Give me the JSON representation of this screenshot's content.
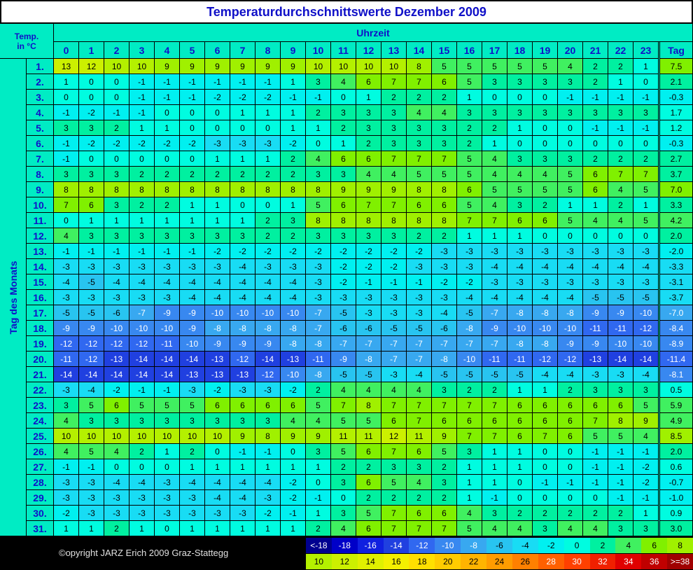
{
  "title": "Temperaturdurchschnittswerte Dezember 2009",
  "corner": [
    "Temp.",
    "in °C"
  ],
  "hour_header": "Uhrzeit",
  "hours": [
    0,
    1,
    2,
    3,
    4,
    5,
    6,
    7,
    8,
    9,
    10,
    11,
    12,
    13,
    14,
    15,
    16,
    17,
    18,
    19,
    20,
    21,
    22,
    23
  ],
  "day_header": "Tag",
  "row_axis_label": "Tag des Monats",
  "rows": [
    {
      "label": "1.",
      "values": [
        13,
        12,
        10,
        10,
        9,
        9,
        9,
        9,
        9,
        9,
        10,
        10,
        10,
        10,
        8,
        5,
        5,
        5,
        5,
        5,
        4,
        2,
        2,
        1
      ],
      "tag": "7.5"
    },
    {
      "label": "2.",
      "values": [
        1,
        0,
        0,
        -1,
        -1,
        -1,
        -1,
        -1,
        -1,
        1,
        3,
        4,
        6,
        7,
        7,
        6,
        5,
        3,
        3,
        3,
        3,
        2,
        1,
        0
      ],
      "tag": "2.1"
    },
    {
      "label": "3.",
      "values": [
        0,
        0,
        0,
        -1,
        -1,
        -1,
        -2,
        -2,
        -2,
        -1,
        -1,
        0,
        1,
        2,
        2,
        2,
        1,
        0,
        0,
        0,
        -1,
        -1,
        -1,
        -1
      ],
      "tag": "-0.3"
    },
    {
      "label": "4.",
      "values": [
        -1,
        -2,
        -1,
        -1,
        0,
        0,
        0,
        1,
        1,
        1,
        2,
        3,
        3,
        3,
        4,
        4,
        3,
        3,
        3,
        3,
        3,
        3,
        3,
        3
      ],
      "tag": "1.7"
    },
    {
      "label": "5.",
      "values": [
        3,
        3,
        2,
        1,
        1,
        0,
        0,
        0,
        0,
        1,
        1,
        2,
        3,
        3,
        3,
        3,
        2,
        2,
        1,
        0,
        0,
        -1,
        -1,
        -1
      ],
      "tag": "1.2"
    },
    {
      "label": "6.",
      "values": [
        -1,
        -2,
        -2,
        -2,
        -2,
        -2,
        -3,
        -3,
        -3,
        -2,
        0,
        1,
        2,
        3,
        3,
        3,
        2,
        1,
        0,
        0,
        0,
        0,
        0,
        0
      ],
      "tag": "-0.3"
    },
    {
      "label": "7.",
      "values": [
        -1,
        0,
        0,
        0,
        0,
        0,
        1,
        1,
        1,
        2,
        4,
        6,
        6,
        7,
        7,
        7,
        5,
        4,
        3,
        3,
        3,
        2,
        2,
        2
      ],
      "tag": "2.7"
    },
    {
      "label": "8.",
      "values": [
        3,
        3,
        3,
        2,
        2,
        2,
        2,
        2,
        2,
        2,
        3,
        3,
        4,
        4,
        5,
        5,
        5,
        4,
        4,
        4,
        5,
        6,
        7,
        7
      ],
      "tag": "3.7"
    },
    {
      "label": "9.",
      "values": [
        8,
        8,
        8,
        8,
        8,
        8,
        8,
        8,
        8,
        8,
        8,
        9,
        9,
        9,
        8,
        8,
        6,
        5,
        5,
        5,
        5,
        6,
        4,
        5
      ],
      "tag": "7.0"
    },
    {
      "label": "10.",
      "values": [
        7,
        6,
        3,
        2,
        2,
        1,
        1,
        0,
        0,
        1,
        5,
        6,
        7,
        7,
        6,
        6,
        5,
        4,
        3,
        2,
        1,
        1,
        2,
        1
      ],
      "tag": "3.3"
    },
    {
      "label": "11.",
      "values": [
        0,
        1,
        1,
        1,
        1,
        1,
        1,
        1,
        2,
        3,
        8,
        8,
        8,
        8,
        8,
        8,
        7,
        7,
        6,
        6,
        5,
        4,
        4,
        5
      ],
      "tag": "4.2"
    },
    {
      "label": "12.",
      "values": [
        4,
        3,
        3,
        3,
        3,
        3,
        3,
        3,
        2,
        2,
        3,
        3,
        3,
        3,
        2,
        2,
        1,
        1,
        1,
        0,
        0,
        0,
        0,
        0
      ],
      "tag": "2.0"
    },
    {
      "label": "13.",
      "values": [
        -1,
        -1,
        -1,
        -1,
        -1,
        -1,
        -2,
        -2,
        -2,
        -2,
        -2,
        -2,
        -2,
        -2,
        -2,
        -3,
        -3,
        -3,
        -3,
        -3,
        -3,
        -3,
        -3,
        -3
      ],
      "tag": "-2.0"
    },
    {
      "label": "14.",
      "values": [
        -3,
        -3,
        -3,
        -3,
        -3,
        -3,
        -3,
        -4,
        -3,
        -3,
        -3,
        -2,
        -2,
        -2,
        -3,
        -3,
        -3,
        -4,
        -4,
        -4,
        -4,
        -4,
        -4,
        -4
      ],
      "tag": "-3.3"
    },
    {
      "label": "15.",
      "values": [
        -4,
        -5,
        -4,
        -4,
        -4,
        -4,
        -4,
        -4,
        -4,
        -4,
        -3,
        -2,
        -1,
        -1,
        -1,
        -2,
        -2,
        -3,
        -3,
        -3,
        -3,
        -3,
        -3,
        -3
      ],
      "tag": "-3.1"
    },
    {
      "label": "16.",
      "values": [
        -3,
        -3,
        -3,
        -3,
        -3,
        -4,
        -4,
        -4,
        -4,
        -4,
        -3,
        -3,
        -3,
        -3,
        -3,
        -3,
        -4,
        -4,
        -4,
        -4,
        -4,
        -5,
        -5,
        -5
      ],
      "tag": "-3.7"
    },
    {
      "label": "17.",
      "values": [
        -5,
        -5,
        -6,
        -7,
        -9,
        -9,
        -10,
        -10,
        -10,
        -10,
        -7,
        -5,
        -3,
        -3,
        -3,
        -4,
        -5,
        -7,
        -8,
        -8,
        -8,
        -9,
        -9,
        -10
      ],
      "tag": "-7.0"
    },
    {
      "label": "18.",
      "values": [
        -9,
        -9,
        -10,
        -10,
        -10,
        -9,
        -8,
        -8,
        -8,
        -8,
        -7,
        -6,
        -6,
        -5,
        -5,
        -6,
        -8,
        -9,
        -10,
        -10,
        -10,
        -11,
        -11,
        -12
      ],
      "tag": "-8.4"
    },
    {
      "label": "19.",
      "values": [
        -12,
        -12,
        -12,
        -12,
        -11,
        -10,
        -9,
        -9,
        -9,
        -8,
        -8,
        -7,
        -7,
        -7,
        -7,
        -7,
        -7,
        -7,
        -8,
        -8,
        -9,
        -9,
        -10,
        -10
      ],
      "tag": "-8.9"
    },
    {
      "label": "20.",
      "values": [
        -11,
        -12,
        -13,
        -14,
        -14,
        -14,
        -13,
        -12,
        -14,
        -13,
        -11,
        -9,
        -8,
        -7,
        -7,
        -8,
        -10,
        -11,
        -11,
        -12,
        -12,
        -13,
        -14,
        -14
      ],
      "tag": "-11.4"
    },
    {
      "label": "21.",
      "values": [
        -14,
        -14,
        -14,
        -14,
        -14,
        -13,
        -13,
        -13,
        -12,
        -10,
        -8,
        -5,
        -5,
        -3,
        -4,
        -5,
        -5,
        -5,
        -5,
        -4,
        -4,
        -3,
        -3,
        -4
      ],
      "tag": "-8.1"
    },
    {
      "label": "22.",
      "values": [
        -3,
        -4,
        -2,
        -1,
        -1,
        -3,
        -2,
        -3,
        -3,
        -2,
        2,
        4,
        4,
        4,
        4,
        3,
        2,
        2,
        1,
        1,
        2,
        3,
        3,
        3
      ],
      "tag": "0.5"
    },
    {
      "label": "23.",
      "values": [
        3,
        5,
        6,
        5,
        5,
        5,
        6,
        6,
        6,
        6,
        5,
        7,
        8,
        7,
        7,
        7,
        7,
        7,
        6,
        6,
        6,
        6,
        6,
        5
      ],
      "tag": "5.9"
    },
    {
      "label": "24.",
      "values": [
        4,
        3,
        3,
        3,
        3,
        3,
        3,
        3,
        3,
        4,
        4,
        5,
        5,
        6,
        7,
        6,
        6,
        6,
        6,
        6,
        6,
        7,
        8,
        9
      ],
      "tag": "4.9"
    },
    {
      "label": "25.",
      "values": [
        10,
        10,
        10,
        10,
        10,
        10,
        10,
        9,
        8,
        9,
        9,
        11,
        11,
        12,
        11,
        9,
        7,
        7,
        6,
        7,
        6,
        5,
        5,
        4
      ],
      "tag": "8.5"
    },
    {
      "label": "26.",
      "values": [
        4,
        5,
        4,
        2,
        1,
        2,
        0,
        -1,
        -1,
        0,
        3,
        5,
        6,
        7,
        6,
        5,
        3,
        1,
        1,
        0,
        0,
        -1,
        -1,
        -1
      ],
      "tag": "2.0"
    },
    {
      "label": "27.",
      "values": [
        -1,
        -1,
        0,
        0,
        0,
        1,
        1,
        1,
        1,
        1,
        1,
        2,
        2,
        3,
        3,
        2,
        1,
        1,
        1,
        0,
        0,
        -1,
        -1,
        -2
      ],
      "tag": "0.6"
    },
    {
      "label": "28.",
      "values": [
        -3,
        -3,
        -4,
        -4,
        -3,
        -4,
        -4,
        -4,
        -4,
        -2,
        0,
        3,
        6,
        5,
        4,
        3,
        1,
        1,
        0,
        -1,
        -1,
        -1,
        -1,
        -2
      ],
      "tag": "-0.7"
    },
    {
      "label": "29.",
      "values": [
        -3,
        -3,
        -3,
        -3,
        -3,
        -3,
        -4,
        -4,
        -3,
        -2,
        -1,
        0,
        2,
        2,
        2,
        2,
        1,
        -1,
        0,
        0,
        0,
        0,
        -1,
        -1
      ],
      "tag": "-1.0"
    },
    {
      "label": "30.",
      "values": [
        -2,
        -3,
        -3,
        -3,
        -3,
        -3,
        -3,
        -3,
        -2,
        -1,
        1,
        3,
        5,
        7,
        6,
        6,
        4,
        3,
        2,
        2,
        2,
        2,
        2,
        1
      ],
      "tag": "0.9"
    },
    {
      "label": "31.",
      "values": [
        1,
        1,
        2,
        1,
        0,
        1,
        1,
        1,
        1,
        1,
        2,
        4,
        6,
        7,
        7,
        7,
        5,
        4,
        4,
        3,
        4,
        4,
        3,
        3
      ],
      "tag": "3.0"
    }
  ],
  "legend": [
    [
      {
        "label": "<-18",
        "color": "#000090"
      },
      {
        "label": "-18",
        "color": "#0000c8"
      },
      {
        "label": "-16",
        "color": "#1020e0"
      },
      {
        "label": "-14",
        "color": "#2040e0"
      },
      {
        "label": "-12",
        "color": "#3068f0"
      },
      {
        "label": "-10",
        "color": "#3888f0"
      },
      {
        "label": "-8",
        "color": "#38a8f0"
      },
      {
        "label": "-6",
        "color": "#28c4f0"
      },
      {
        "label": "-4",
        "color": "#18dcf4"
      },
      {
        "label": "-2",
        "color": "#00f0f0"
      },
      {
        "label": "0",
        "color": "#00fce0"
      },
      {
        "label": "2",
        "color": "#00f0a0"
      },
      {
        "label": "4",
        "color": "#40f060"
      },
      {
        "label": "6",
        "color": "#80f000"
      },
      {
        "label": "8",
        "color": "#a0f000"
      }
    ],
    [
      {
        "label": "10",
        "color": "#b4f000"
      },
      {
        "label": "12",
        "color": "#ccf000"
      },
      {
        "label": "14",
        "color": "#e0f000"
      },
      {
        "label": "16",
        "color": "#f4f000"
      },
      {
        "label": "18",
        "color": "#ffe000"
      },
      {
        "label": "20",
        "color": "#ffcc00"
      },
      {
        "label": "22",
        "color": "#ffb400"
      },
      {
        "label": "24",
        "color": "#ff9c00"
      },
      {
        "label": "26",
        "color": "#ff8000"
      },
      {
        "label": "28",
        "color": "#ff6000"
      },
      {
        "label": "30",
        "color": "#ff4000"
      },
      {
        "label": "32",
        "color": "#f02000"
      },
      {
        "label": "34",
        "color": "#e00000"
      },
      {
        "label": "36",
        "color": "#c00000"
      },
      {
        "label": ">=38",
        "color": "#a00000"
      }
    ]
  ],
  "copyright": "©opyright JARZ Erich 2009 Graz-Stattegg"
}
